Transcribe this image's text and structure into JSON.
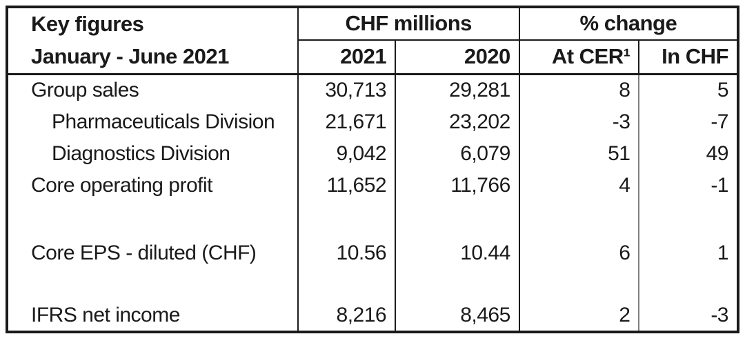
{
  "table": {
    "title_line1": "Key figures",
    "title_line2": "January - June 2021",
    "column_groups": {
      "chf_millions": "CHF millions",
      "pct_change": "% change"
    },
    "columns": {
      "y2021": "2021",
      "y2020": "2020",
      "at_cer": "At CER¹",
      "in_chf": "In CHF"
    },
    "rows": [
      {
        "label": "Group sales",
        "indent": false,
        "v2021": "30,713",
        "v2020": "29,281",
        "cer": "8",
        "chf": "5"
      },
      {
        "label": "Pharmaceuticals Division",
        "indent": true,
        "v2021": "21,671",
        "v2020": "23,202",
        "cer": "-3",
        "chf": "-7"
      },
      {
        "label": "Diagnostics Division",
        "indent": true,
        "v2021": "9,042",
        "v2020": "6,079",
        "cer": "51",
        "chf": "49"
      },
      {
        "label": "Core operating profit",
        "indent": false,
        "v2021": "11,652",
        "v2020": "11,766",
        "cer": "4",
        "chf": "-1"
      },
      {
        "label": "Core EPS - diluted (CHF)",
        "indent": false,
        "v2021": "10.56",
        "v2020": "10.44",
        "cer": "6",
        "chf": "1"
      },
      {
        "label": "IFRS net income",
        "indent": false,
        "v2021": "8,216",
        "v2020": "8,465",
        "cer": "2",
        "chf": "-3"
      }
    ]
  },
  "colors": {
    "border": "#1a1a1a",
    "sub_separator": "#808080",
    "text": "#1a1a1a",
    "background": "#ffffff"
  }
}
